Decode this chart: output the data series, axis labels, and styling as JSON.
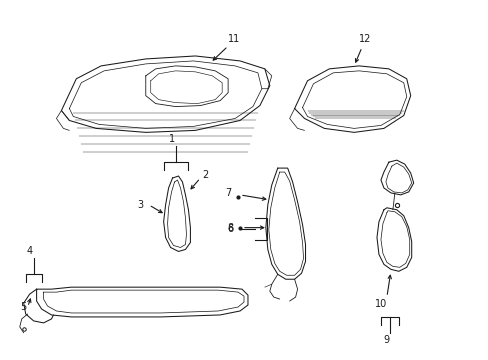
{
  "bg_color": "#ffffff",
  "line_color": "#1a1a1a",
  "fig_width": 4.89,
  "fig_height": 3.6,
  "dpi": 100,
  "lw": 0.75,
  "fs": 7.0
}
